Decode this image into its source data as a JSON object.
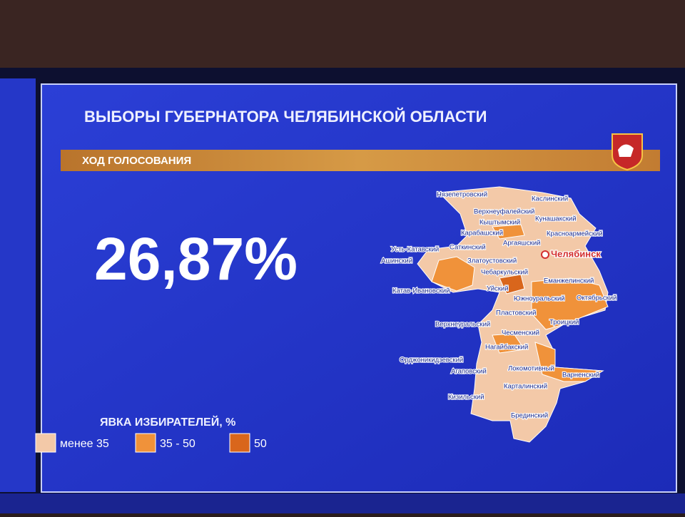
{
  "header": {
    "title": "ВЫБОРЫ ГУБЕРНАТОРА ЧЕЛЯБИНСКОЙ ОБЛАСТИ",
    "subtitle": "ХОД ГОЛОСОВАНИЯ"
  },
  "turnout": "26,87%",
  "map": {
    "city": "Челябинск",
    "districts": [
      "Нязепетровский",
      "Каслинский",
      "Верхнеуфалейский",
      "Кунашакский",
      "Кыштымский",
      "Красноармейский",
      "Карабашский",
      "Аргаяшский",
      "Усть-Катавский",
      "Саткинский",
      "Ашинский",
      "Златоустовский",
      "Чебаркульский",
      "Уйский",
      "Еманжелинский",
      "Катав-Ивановский",
      "Южноуральский",
      "Октябрьский",
      "Пластовский",
      "Верхнеуральский",
      "Троицкий",
      "Чесменский",
      "Нагайбакский",
      "Орджоникидзевский",
      "Агаповский",
      "Локомотивный",
      "Варненский",
      "Карталинский",
      "Кизильский",
      "Брединский"
    ]
  },
  "legend": {
    "title": "ЯВКА ИЗБИРАТЕЛЕЙ, %",
    "items": [
      {
        "label": "менее 35",
        "color": "#f3c9a8"
      },
      {
        "label": "35 - 50",
        "color": "#f0923a"
      },
      {
        "label": "50",
        "color": "#d9661c"
      }
    ]
  }
}
